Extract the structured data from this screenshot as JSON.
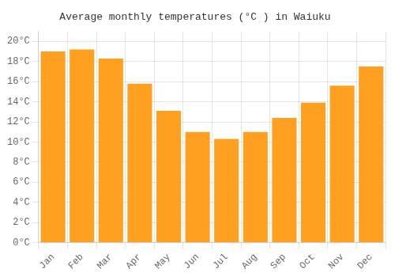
{
  "chart_data": {
    "type": "bar",
    "title": "Average monthly temperatures (°C ) in Waiuku",
    "categories": [
      "Jan",
      "Feb",
      "Mar",
      "Apr",
      "May",
      "Jun",
      "Jul",
      "Aug",
      "Sep",
      "Oct",
      "Nov",
      "Dec"
    ],
    "values": [
      19.0,
      19.2,
      18.3,
      15.8,
      13.1,
      11.0,
      10.3,
      11.0,
      12.4,
      13.9,
      15.6,
      17.5
    ],
    "color": "#FFA020",
    "ylim": [
      0,
      21
    ],
    "yticks": [
      {
        "value": 0,
        "label": "0°C"
      },
      {
        "value": 2,
        "label": "2°C"
      },
      {
        "value": 4,
        "label": "4°C"
      },
      {
        "value": 6,
        "label": "6°C"
      },
      {
        "value": 8,
        "label": "8°C"
      },
      {
        "value": 10,
        "label": "10°C"
      },
      {
        "value": 12,
        "label": "12°C"
      },
      {
        "value": 14,
        "label": "14°C"
      },
      {
        "value": 16,
        "label": "16°C"
      },
      {
        "value": 18,
        "label": "18°C"
      },
      {
        "value": 20,
        "label": "20°C"
      }
    ],
    "grid": true
  }
}
